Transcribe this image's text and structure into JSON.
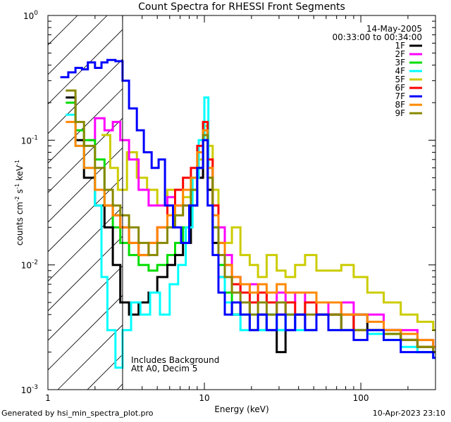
{
  "chart_data": {
    "type": "line",
    "title": "Count Spectra for RHESSI Front Segments",
    "xlabel": "Energy (keV)",
    "ylabel_parts": [
      "counts cm",
      "-2",
      " s",
      "-1",
      " keV",
      "-1"
    ],
    "x_scale": "log",
    "y_scale": "log",
    "xlim": [
      1,
      300
    ],
    "ylim": [
      0.001,
      1
    ],
    "x_ticks": [
      {
        "value": 1,
        "label": "1"
      },
      {
        "value": 10,
        "label": "10"
      },
      {
        "value": 100,
        "label": "100"
      }
    ],
    "y_ticks": [
      {
        "value": 1,
        "base": "10",
        "exp": "0"
      },
      {
        "value": 0.1,
        "base": "10",
        "exp": "-1"
      },
      {
        "value": 0.01,
        "base": "10",
        "exp": "-2"
      },
      {
        "value": 0.001,
        "base": "10",
        "exp": "-3"
      }
    ],
    "date": "14-May-2005",
    "time_range": "00:33:00 to 00:34:00",
    "attenuator_cutoff_kev": 3,
    "notes": [
      "Includes Background",
      "Att A0, Decim 5"
    ],
    "legend": [
      {
        "name": "1F",
        "color": "#000000"
      },
      {
        "name": "2F",
        "color": "#ff00ff"
      },
      {
        "name": "3F",
        "color": "#00dd00"
      },
      {
        "name": "4F",
        "color": "#00ffff"
      },
      {
        "name": "5F",
        "color": "#cccc00"
      },
      {
        "name": "6F",
        "color": "#ff0000"
      },
      {
        "name": "7F",
        "color": "#0000ff"
      },
      {
        "name": "8F",
        "color": "#ff8800"
      },
      {
        "name": "9F",
        "color": "#888800"
      }
    ],
    "series": [
      {
        "name": "5F",
        "color": "#cccc00",
        "x": [
          2.2,
          2.5,
          2.8,
          3.2,
          3.7,
          4.3,
          5.0,
          5.8,
          6.5,
          7.3,
          8.2,
          9.0,
          9.8,
          10.5,
          11.3,
          12.3,
          13.5,
          15.0,
          17.0,
          19.5,
          22.0,
          25.0,
          29.0,
          33.0,
          38.0,
          44.0,
          52.0,
          62.0,
          75.0,
          90.0,
          110.0,
          140.0,
          180.0,
          230.0,
          290.0
        ],
        "y": [
          0.11,
          0.06,
          0.04,
          0.08,
          0.05,
          0.04,
          0.03,
          0.04,
          0.03,
          0.035,
          0.05,
          0.07,
          0.13,
          0.09,
          0.04,
          0.02,
          0.015,
          0.02,
          0.012,
          0.01,
          0.008,
          0.012,
          0.009,
          0.008,
          0.01,
          0.012,
          0.009,
          0.009,
          0.01,
          0.008,
          0.006,
          0.005,
          0.004,
          0.0035,
          0.003
        ]
      },
      {
        "name": "2F",
        "color": "#ff00ff",
        "x": [
          1.8,
          2.0,
          2.3,
          2.6,
          2.9,
          3.3,
          3.8,
          4.4,
          5.0,
          5.8,
          6.5,
          7.3,
          8.2,
          9.0,
          9.8,
          10.5,
          11.3,
          12.3,
          13.5,
          15.0,
          17.0,
          19.5,
          22.0,
          25.0,
          29.0,
          33.0,
          38.0,
          44.0,
          52.0,
          62.0,
          75.0,
          90.0,
          110.0,
          140.0,
          180.0,
          230.0,
          290.0
        ],
        "y": [
          0.1,
          0.15,
          0.12,
          0.14,
          0.1,
          0.07,
          0.04,
          0.03,
          0.03,
          0.035,
          0.03,
          0.03,
          0.03,
          0.05,
          0.11,
          0.06,
          0.03,
          0.02,
          0.012,
          0.008,
          0.006,
          0.007,
          0.006,
          0.005,
          0.006,
          0.005,
          0.006,
          0.005,
          0.005,
          0.004,
          0.005,
          0.004,
          0.004,
          0.003,
          0.003,
          0.0025,
          0.0022
        ]
      },
      {
        "name": "3F",
        "color": "#00dd00",
        "x": [
          1.3,
          1.5,
          1.7,
          2.0,
          2.3,
          2.6,
          2.9,
          3.3,
          3.8,
          4.4,
          5.0,
          5.8,
          6.5,
          7.3,
          8.2,
          9.0,
          9.8,
          10.5,
          11.3,
          12.3,
          13.5,
          15.0,
          17.0,
          19.5,
          22.0,
          25.0,
          29.0,
          33.0,
          38.0,
          44.0,
          52.0,
          62.0,
          75.0,
          90.0,
          110.0,
          140.0,
          180.0,
          230.0,
          290.0
        ],
        "y": [
          0.2,
          0.12,
          0.1,
          0.07,
          0.03,
          0.02,
          0.015,
          0.012,
          0.01,
          0.009,
          0.01,
          0.012,
          0.015,
          0.02,
          0.04,
          0.06,
          0.12,
          0.05,
          0.02,
          0.01,
          0.006,
          0.004,
          0.004,
          0.003,
          0.003,
          0.004,
          0.003,
          0.004,
          0.004,
          0.005,
          0.004,
          0.004,
          0.004,
          0.003,
          0.003,
          0.0028,
          0.0025,
          0.0022,
          0.002
        ]
      },
      {
        "name": "1F",
        "color": "#000000",
        "x": [
          1.3,
          1.5,
          1.7,
          2.0,
          2.3,
          2.6,
          2.9,
          3.3,
          3.8,
          4.4,
          5.0,
          5.8,
          6.5,
          7.3,
          8.2,
          9.0,
          9.8,
          10.5,
          11.3,
          12.3,
          13.5,
          15.0,
          17.0,
          19.5,
          22.0,
          25.0,
          29.0,
          33.0,
          38.0,
          44.0,
          52.0,
          62.0,
          75.0,
          90.0,
          110.0,
          140.0,
          180.0,
          230.0,
          290.0
        ],
        "y": [
          0.22,
          0.1,
          0.05,
          0.03,
          0.02,
          0.01,
          0.005,
          0.004,
          0.005,
          0.006,
          0.008,
          0.01,
          0.012,
          0.015,
          0.03,
          0.05,
          0.1,
          0.04,
          0.015,
          0.008,
          0.005,
          0.004,
          0.005,
          0.003,
          0.004,
          0.003,
          0.002,
          0.003,
          0.004,
          0.003,
          0.004,
          0.004,
          0.003,
          0.004,
          0.003,
          0.003,
          0.0025,
          0.002,
          0.002
        ]
      },
      {
        "name": "4F",
        "color": "#00ffff",
        "x": [
          1.3,
          1.5,
          1.7,
          2.0,
          2.2,
          2.4,
          2.7,
          3.0,
          3.4,
          3.9,
          4.5,
          5.2,
          6.0,
          6.8,
          7.6,
          8.4,
          9.2,
          10.0,
          10.6,
          11.3,
          12.3,
          13.5,
          15.0,
          17.0,
          19.5,
          22.0,
          25.0,
          29.0,
          33.0,
          38.0,
          44.0,
          52.0,
          62.0,
          75.0,
          90.0,
          110.0,
          140.0,
          180.0,
          230.0,
          290.0
        ],
        "y": [
          0.16,
          0.09,
          0.06,
          0.03,
          0.008,
          0.003,
          0.0015,
          0.003,
          0.005,
          0.004,
          0.006,
          0.004,
          0.007,
          0.01,
          0.02,
          0.05,
          0.1,
          0.22,
          0.06,
          0.02,
          0.008,
          0.005,
          0.004,
          0.003,
          0.004,
          0.003,
          0.004,
          0.003,
          0.004,
          0.003,
          0.003,
          0.004,
          0.003,
          0.003,
          0.003,
          0.0028,
          0.0025,
          0.0022,
          0.002,
          0.0018
        ]
      },
      {
        "name": "6F",
        "color": "#ff0000",
        "x": [
          2.3,
          2.6,
          2.9,
          3.3,
          3.8,
          4.4,
          5.0,
          5.8,
          6.5,
          7.3,
          8.2,
          9.0,
          9.8,
          10.5,
          11.3,
          12.3,
          13.5,
          15.0,
          17.0,
          19.5,
          22.0,
          25.0,
          29.0,
          33.0,
          38.0,
          44.0,
          52.0,
          62.0,
          75.0,
          90.0,
          110.0,
          140.0,
          180.0,
          230.0,
          290.0
        ],
        "y": [
          0.03,
          0.025,
          0.02,
          0.015,
          0.012,
          0.015,
          0.02,
          0.03,
          0.04,
          0.05,
          0.06,
          0.09,
          0.14,
          0.07,
          0.03,
          0.015,
          0.01,
          0.007,
          0.006,
          0.005,
          0.006,
          0.005,
          0.004,
          0.005,
          0.004,
          0.005,
          0.004,
          0.004,
          0.004,
          0.003,
          0.003,
          0.003,
          0.0025,
          0.0022,
          0.002
        ]
      },
      {
        "name": "8F",
        "color": "#ff8800",
        "x": [
          1.3,
          1.5,
          1.7,
          2.0,
          2.3,
          2.6,
          2.9,
          3.3,
          3.8,
          4.4,
          5.0,
          5.8,
          6.5,
          7.3,
          8.2,
          9.0,
          9.8,
          10.5,
          11.3,
          12.3,
          13.5,
          15.0,
          17.0,
          19.5,
          22.0,
          25.0,
          29.0,
          33.0,
          38.0,
          44.0,
          52.0,
          62.0,
          75.0,
          90.0,
          110.0,
          140.0,
          180.0,
          230.0,
          290.0
        ],
        "y": [
          0.14,
          0.09,
          0.06,
          0.04,
          0.03,
          0.025,
          0.02,
          0.015,
          0.012,
          0.015,
          0.02,
          0.025,
          0.03,
          0.04,
          0.05,
          0.08,
          0.12,
          0.06,
          0.025,
          0.015,
          0.01,
          0.008,
          0.007,
          0.006,
          0.007,
          0.006,
          0.007,
          0.006,
          0.006,
          0.006,
          0.005,
          0.005,
          0.004,
          0.004,
          0.0035,
          0.003,
          0.0028,
          0.0025,
          0.0022
        ]
      },
      {
        "name": "9F",
        "color": "#888800",
        "x": [
          1.3,
          1.5,
          1.7,
          2.0,
          2.3,
          2.6,
          2.9,
          3.3,
          3.8,
          4.4,
          5.0,
          5.8,
          6.5,
          7.3,
          8.2,
          9.0,
          9.8,
          10.5,
          11.3,
          12.3,
          13.5,
          15.0,
          17.0,
          19.5,
          22.0,
          25.0,
          29.0,
          33.0,
          38.0,
          44.0,
          52.0,
          62.0,
          75.0,
          90.0,
          110.0,
          140.0,
          180.0,
          230.0,
          290.0
        ],
        "y": [
          0.25,
          0.14,
          0.09,
          0.06,
          0.04,
          0.03,
          0.025,
          0.02,
          0.015,
          0.012,
          0.015,
          0.02,
          0.025,
          0.03,
          0.04,
          0.06,
          0.11,
          0.05,
          0.02,
          0.012,
          0.008,
          0.006,
          0.005,
          0.004,
          0.005,
          0.004,
          0.005,
          0.004,
          0.004,
          0.004,
          0.004,
          0.004,
          0.003,
          0.003,
          0.003,
          0.0028,
          0.0025,
          0.0022,
          0.002
        ]
      },
      {
        "name": "7F",
        "color": "#0000ff",
        "x": [
          1.2,
          1.35,
          1.5,
          1.65,
          1.8,
          2.0,
          2.2,
          2.4,
          2.7,
          3.0,
          3.3,
          3.7,
          4.1,
          4.6,
          5.1,
          5.6,
          6.3,
          7.1,
          8.0,
          9.0,
          9.8,
          10.5,
          11.3,
          12.3,
          13.5,
          15.0,
          17.0,
          19.5,
          22.0,
          25.0,
          29.0,
          33.0,
          38.0,
          44.0,
          52.0,
          62.0,
          75.0,
          90.0,
          110.0,
          140.0,
          180.0,
          230.0,
          290.0
        ],
        "y": [
          0.32,
          0.35,
          0.38,
          0.37,
          0.42,
          0.38,
          0.42,
          0.44,
          0.43,
          0.3,
          0.18,
          0.12,
          0.08,
          0.06,
          0.07,
          0.03,
          0.02,
          0.015,
          0.03,
          0.06,
          0.1,
          0.03,
          0.012,
          0.006,
          0.004,
          0.005,
          0.004,
          0.003,
          0.004,
          0.003,
          0.004,
          0.003,
          0.004,
          0.003,
          0.004,
          0.003,
          0.003,
          0.0025,
          0.003,
          0.0025,
          0.002,
          0.002,
          0.0018
        ]
      }
    ]
  },
  "footer": {
    "generated_by": "Generated by hsi_min_spectra_plot.pro",
    "timestamp": "10-Apr-2023 23:10"
  }
}
